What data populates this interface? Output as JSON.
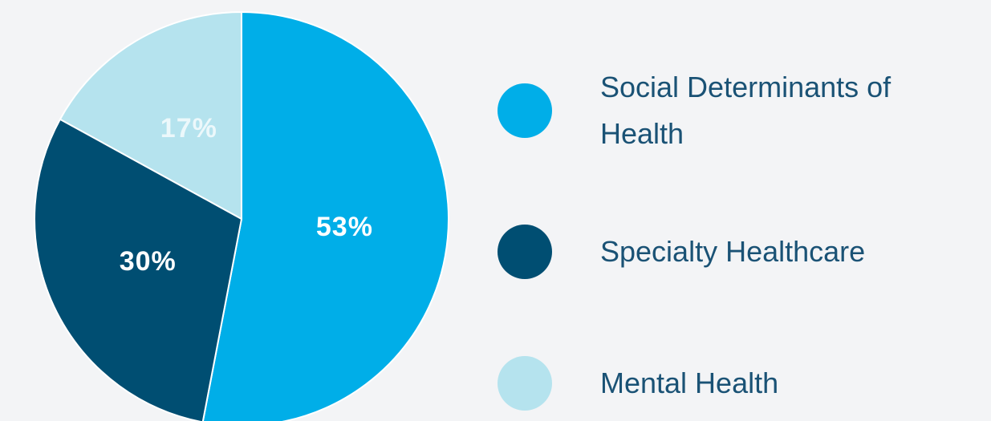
{
  "chart_data": {
    "type": "pie",
    "categories": [
      "Social Determinants of Health",
      "Specialty Healthcare",
      "Mental Health"
    ],
    "values": [
      53,
      30,
      17
    ],
    "value_labels": [
      "53%",
      "30%",
      "17%"
    ],
    "colors": [
      "#00aee8",
      "#004e72",
      "#b5e3ee"
    ],
    "legend": "right"
  }
}
